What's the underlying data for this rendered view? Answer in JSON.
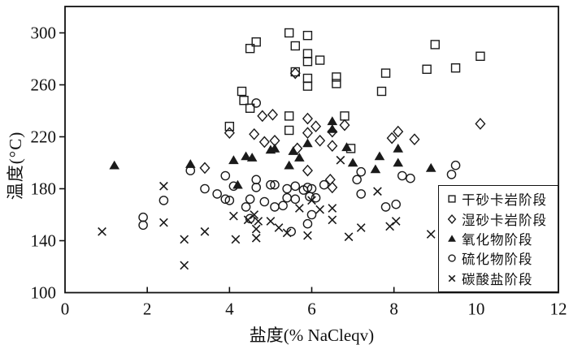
{
  "chart_data": {
    "type": "scatter",
    "title": "",
    "xlabel": "盐度(% NaCleqv)",
    "ylabel": "温度(°C)",
    "xlim": [
      0,
      12
    ],
    "ylim": [
      100,
      320
    ],
    "xticks": [
      0,
      2,
      4,
      6,
      8,
      10,
      12
    ],
    "yticks": [
      100,
      140,
      180,
      220,
      260,
      300
    ],
    "grid": false,
    "legend_position": "inside lower-right box",
    "marker_color": "#1a1a1a",
    "series": [
      {
        "name": "干砂卡岩阶段",
        "marker": "open-square",
        "points": [
          [
            5.45,
            300
          ],
          [
            5.9,
            298
          ],
          [
            4.65,
            293
          ],
          [
            4.5,
            288
          ],
          [
            5.6,
            290
          ],
          [
            5.9,
            284
          ],
          [
            5.9,
            278
          ],
          [
            6.2,
            279
          ],
          [
            9.0,
            291
          ],
          [
            10.1,
            282
          ],
          [
            8.8,
            272
          ],
          [
            9.5,
            273
          ],
          [
            5.6,
            270
          ],
          [
            5.9,
            265
          ],
          [
            5.9,
            259
          ],
          [
            6.6,
            266
          ],
          [
            6.6,
            261
          ],
          [
            7.8,
            269
          ],
          [
            7.7,
            255
          ],
          [
            4.3,
            255
          ],
          [
            4.35,
            248
          ],
          [
            4.5,
            242
          ],
          [
            4.0,
            228
          ],
          [
            5.45,
            236
          ],
          [
            5.45,
            225
          ],
          [
            6.8,
            236
          ],
          [
            6.95,
            211
          ]
        ]
      },
      {
        "name": "湿砂卡岩阶段",
        "marker": "open-diamond",
        "points": [
          [
            4.8,
            236
          ],
          [
            5.05,
            237
          ],
          [
            5.9,
            234
          ],
          [
            6.1,
            228
          ],
          [
            5.9,
            223
          ],
          [
            6.8,
            229
          ],
          [
            6.2,
            217
          ],
          [
            6.5,
            224
          ],
          [
            6.5,
            213
          ],
          [
            4.0,
            223
          ],
          [
            4.6,
            222
          ],
          [
            4.85,
            216
          ],
          [
            5.1,
            217
          ],
          [
            5.65,
            211
          ],
          [
            8.1,
            224
          ],
          [
            7.95,
            219
          ],
          [
            8.5,
            218
          ],
          [
            10.1,
            230
          ],
          [
            5.9,
            194
          ],
          [
            6.45,
            187
          ],
          [
            3.4,
            196
          ],
          [
            6.5,
            181
          ],
          [
            5.6,
            269
          ]
        ]
      },
      {
        "name": "氧化物阶段",
        "marker": "filled-triangle",
        "points": [
          [
            1.2,
            198
          ],
          [
            3.05,
            199
          ],
          [
            4.1,
            202
          ],
          [
            4.4,
            205
          ],
          [
            4.55,
            204
          ],
          [
            5.0,
            210
          ],
          [
            5.1,
            211
          ],
          [
            5.55,
            209
          ],
          [
            5.7,
            204
          ],
          [
            5.45,
            198
          ],
          [
            5.9,
            215
          ],
          [
            6.5,
            232
          ],
          [
            6.5,
            226
          ],
          [
            6.85,
            212
          ],
          [
            7.0,
            200
          ],
          [
            7.65,
            205
          ],
          [
            7.55,
            195
          ],
          [
            8.1,
            211
          ],
          [
            8.1,
            200
          ],
          [
            8.9,
            196
          ],
          [
            4.2,
            183
          ]
        ]
      },
      {
        "name": "硫化物阶段",
        "marker": "open-circle",
        "points": [
          [
            4.65,
            246
          ],
          [
            9.5,
            198
          ],
          [
            9.4,
            191
          ],
          [
            3.05,
            194
          ],
          [
            3.9,
            190
          ],
          [
            4.1,
            182
          ],
          [
            3.4,
            180
          ],
          [
            3.7,
            176
          ],
          [
            3.9,
            172
          ],
          [
            2.4,
            171
          ],
          [
            1.9,
            158
          ],
          [
            1.9,
            152
          ],
          [
            4.65,
            187
          ],
          [
            4.65,
            181
          ],
          [
            5.0,
            183
          ],
          [
            5.1,
            183
          ],
          [
            5.4,
            180
          ],
          [
            5.6,
            182
          ],
          [
            5.8,
            179
          ],
          [
            5.9,
            181
          ],
          [
            6.0,
            180
          ],
          [
            6.3,
            183
          ],
          [
            7.1,
            187
          ],
          [
            7.2,
            193
          ],
          [
            7.2,
            176
          ],
          [
            8.2,
            190
          ],
          [
            8.4,
            188
          ],
          [
            4.5,
            172
          ],
          [
            4.85,
            170
          ],
          [
            5.1,
            166
          ],
          [
            5.3,
            167
          ],
          [
            5.4,
            173
          ],
          [
            5.6,
            172
          ],
          [
            5.95,
            174
          ],
          [
            6.1,
            173
          ],
          [
            4.4,
            166
          ],
          [
            6.0,
            160
          ],
          [
            5.9,
            153
          ],
          [
            5.5,
            147
          ],
          [
            7.8,
            166
          ],
          [
            8.05,
            168
          ],
          [
            4.5,
            157
          ],
          [
            4.0,
            171
          ]
        ]
      },
      {
        "name": "碳酸盐阶段",
        "marker": "cross",
        "points": [
          [
            0.9,
            147
          ],
          [
            2.4,
            182
          ],
          [
            2.4,
            154
          ],
          [
            2.9,
            141
          ],
          [
            2.9,
            121
          ],
          [
            3.4,
            147
          ],
          [
            4.15,
            141
          ],
          [
            4.1,
            159
          ],
          [
            4.45,
            156
          ],
          [
            4.6,
            160
          ],
          [
            4.7,
            155
          ],
          [
            5.0,
            155
          ],
          [
            4.65,
            149
          ],
          [
            4.65,
            142
          ],
          [
            5.2,
            150
          ],
          [
            5.4,
            146
          ],
          [
            5.7,
            165
          ],
          [
            5.9,
            144
          ],
          [
            6.0,
            171
          ],
          [
            6.2,
            164
          ],
          [
            6.5,
            165
          ],
          [
            6.5,
            156
          ],
          [
            6.7,
            202
          ],
          [
            6.9,
            143
          ],
          [
            7.2,
            150
          ],
          [
            7.6,
            178
          ],
          [
            7.9,
            151
          ],
          [
            8.05,
            155
          ],
          [
            8.9,
            145
          ]
        ]
      }
    ]
  }
}
